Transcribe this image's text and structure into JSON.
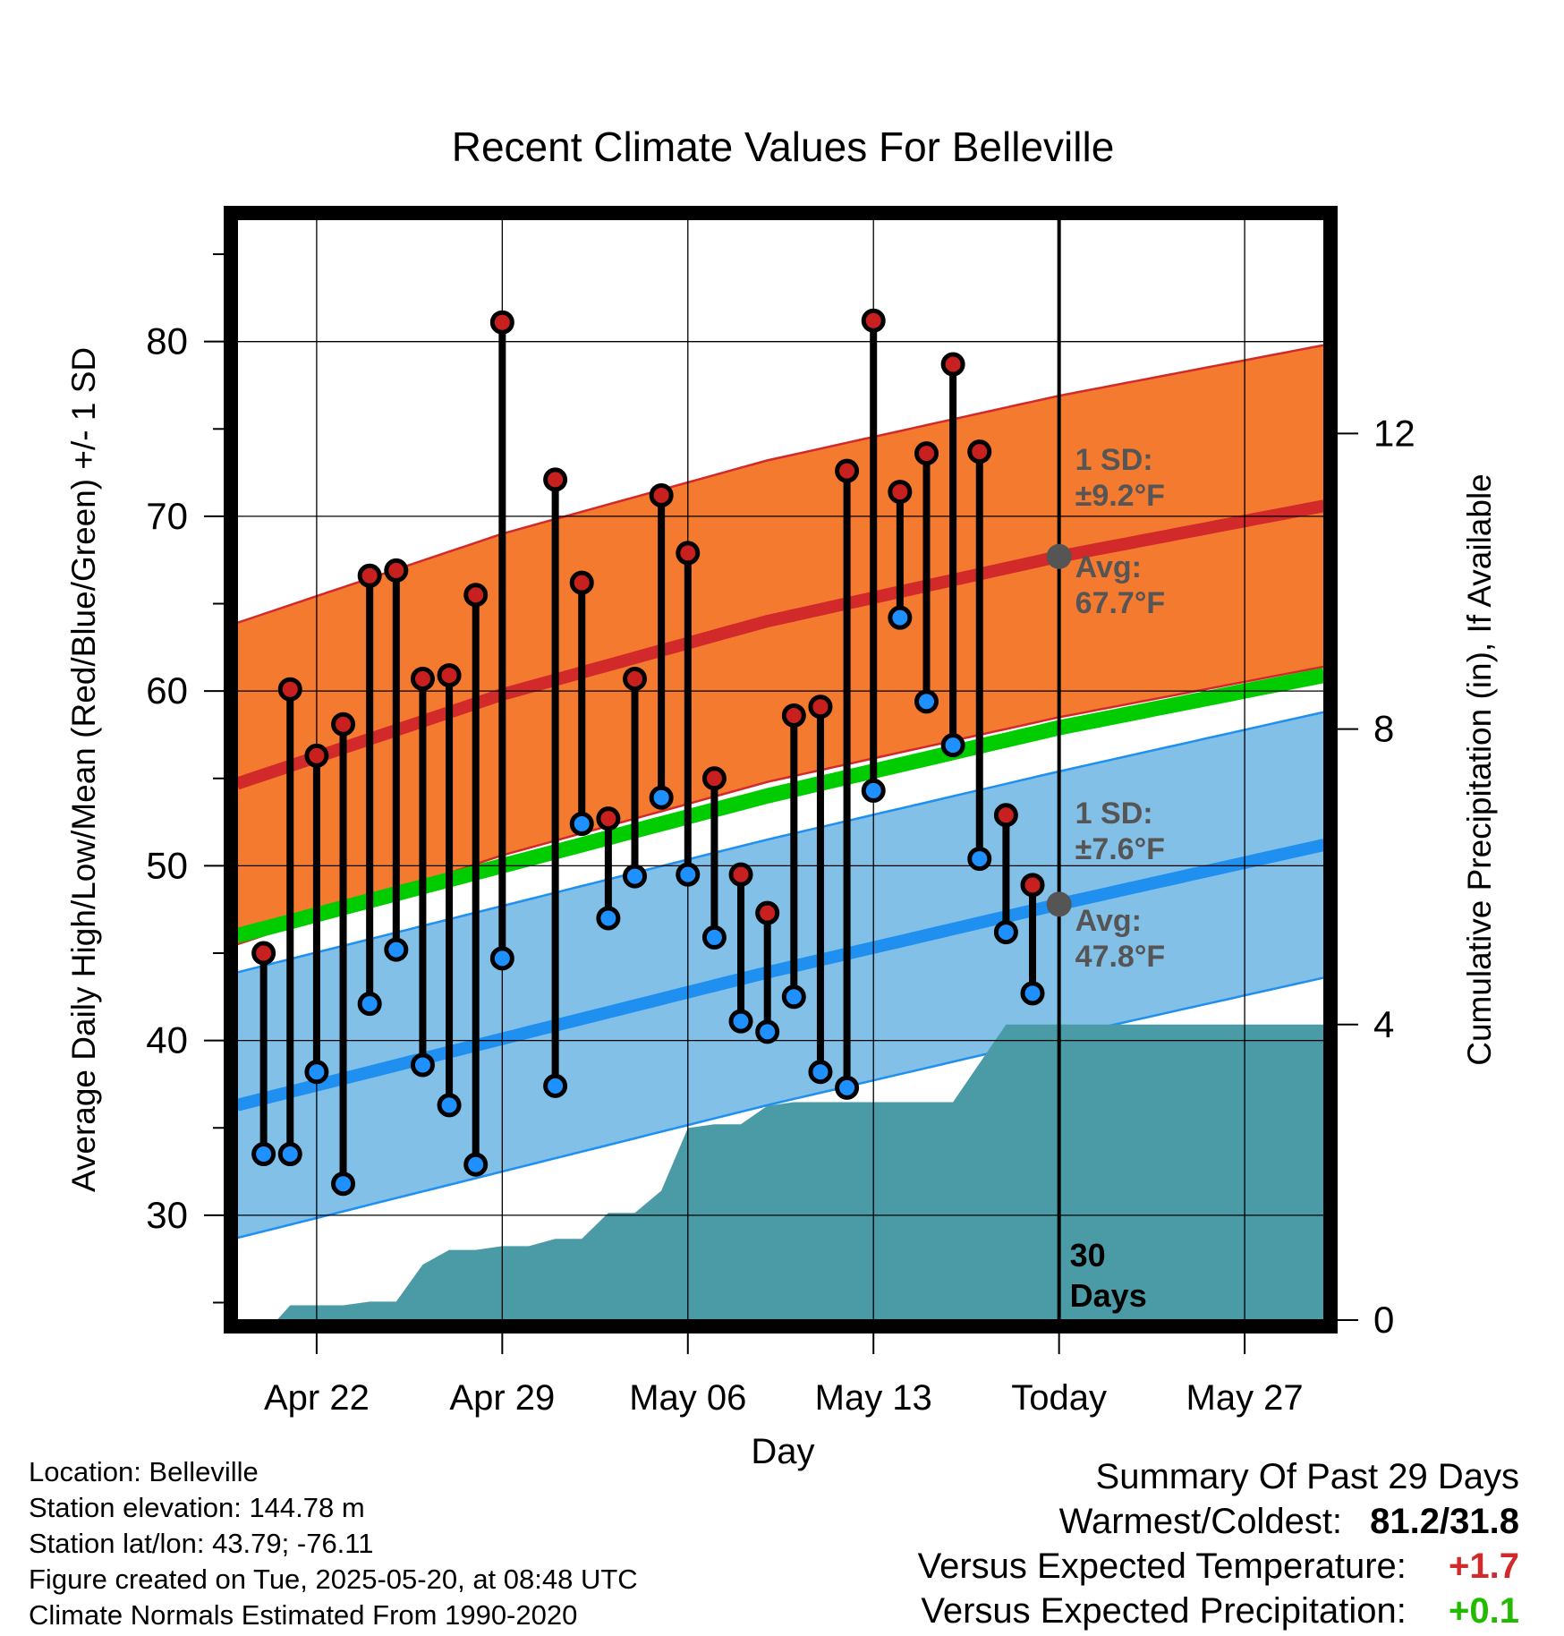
{
  "chart_data": {
    "type": "line",
    "title": "Recent Climate Values For Belleville",
    "xlabel": "Day",
    "ylabel": "Average Daily High/Low/Mean (Red/Blue/Green) +/- 1 SD",
    "y2label": "Cumulative Precipitation (in), If Available",
    "x_start_day": "Apr 19",
    "x_range_days": [
      0,
      41
    ],
    "ylim": [
      24,
      87
    ],
    "y2lim": [
      0,
      14.9
    ],
    "yticks": [
      30,
      40,
      50,
      60,
      70,
      80
    ],
    "y2ticks": [
      0,
      4,
      8,
      12
    ],
    "x_ticks": [
      {
        "day": 3,
        "label": "Apr 22"
      },
      {
        "day": 10,
        "label": "Apr 29"
      },
      {
        "day": 17,
        "label": "May 06"
      },
      {
        "day": 24,
        "label": "May 13"
      },
      {
        "day": 31,
        "label": "Today"
      },
      {
        "day": 38,
        "label": "May 27"
      }
    ],
    "today_day": 31,
    "today_label": "30\nDays",
    "normal_high": {
      "x": [
        0,
        10,
        20,
        31,
        41
      ],
      "avg": [
        54.7,
        59.8,
        64.0,
        67.7,
        70.6
      ],
      "sd": 9.2
    },
    "normal_low": {
      "x": [
        0,
        10,
        20,
        31,
        41
      ],
      "avg": [
        36.3,
        40.1,
        43.9,
        47.8,
        51.2
      ],
      "sd": 7.6
    },
    "normal_mean": {
      "x": [
        0,
        10,
        20,
        31,
        41
      ],
      "values": [
        46.0,
        50.0,
        54.0,
        57.9,
        60.9
      ]
    },
    "annotations": {
      "high_sd": "1 SD:\n±9.2°F",
      "high_avg": "Avg:\n67.7°F",
      "low_sd": "1 SD:\n±7.6°F",
      "low_avg": "Avg:\n47.8°F"
    },
    "daily": [
      {
        "day": 1,
        "high": 45.0,
        "low": 33.5
      },
      {
        "day": 2,
        "high": 60.1,
        "low": 33.5
      },
      {
        "day": 3,
        "high": 56.3,
        "low": 38.2
      },
      {
        "day": 4,
        "high": 58.1,
        "low": 31.8
      },
      {
        "day": 5,
        "high": 66.6,
        "low": 42.1
      },
      {
        "day": 6,
        "high": 66.9,
        "low": 45.2
      },
      {
        "day": 7,
        "high": 60.7,
        "low": 38.6
      },
      {
        "day": 8,
        "high": 60.9,
        "low": 36.3
      },
      {
        "day": 9,
        "high": 65.5,
        "low": 32.9
      },
      {
        "day": 10,
        "high": 81.1,
        "low": 44.7
      },
      {
        "day": 12,
        "high": 72.1,
        "low": 37.4
      },
      {
        "day": 13,
        "high": 66.2,
        "low": 52.4
      },
      {
        "day": 14,
        "high": 52.7,
        "low": 47.0
      },
      {
        "day": 15,
        "high": 60.7,
        "low": 49.4
      },
      {
        "day": 16,
        "high": 71.2,
        "low": 53.9
      },
      {
        "day": 17,
        "high": 67.9,
        "low": 49.5
      },
      {
        "day": 18,
        "high": 55.0,
        "low": 45.9
      },
      {
        "day": 19,
        "high": 49.5,
        "low": 41.1
      },
      {
        "day": 20,
        "high": 47.3,
        "low": 40.5
      },
      {
        "day": 21,
        "high": 58.6,
        "low": 42.5
      },
      {
        "day": 22,
        "high": 59.1,
        "low": 38.2
      },
      {
        "day": 23,
        "high": 72.6,
        "low": 37.3
      },
      {
        "day": 24,
        "high": 81.2,
        "low": 54.3
      },
      {
        "day": 25,
        "high": 71.4,
        "low": 64.2
      },
      {
        "day": 26,
        "high": 73.6,
        "low": 59.4
      },
      {
        "day": 27,
        "high": 78.7,
        "low": 56.9
      },
      {
        "day": 28,
        "high": 73.7,
        "low": 50.4
      },
      {
        "day": 29,
        "high": 52.9,
        "low": 46.2
      },
      {
        "day": 30,
        "high": 48.9,
        "low": 42.7
      }
    ],
    "precip_cumulative": {
      "x": [
        0.5,
        1,
        1.5,
        2,
        4,
        5,
        6,
        7,
        8,
        9,
        10,
        11,
        12,
        13,
        14,
        15,
        16,
        17,
        18,
        19,
        20,
        21,
        22,
        23,
        24,
        25,
        26,
        27,
        29,
        30,
        31,
        41
      ],
      "values": [
        0,
        0,
        0,
        0.2,
        0.2,
        0.25,
        0.25,
        0.75,
        0.95,
        0.95,
        1.0,
        1.0,
        1.1,
        1.1,
        1.45,
        1.45,
        1.75,
        2.6,
        2.65,
        2.65,
        2.9,
        2.95,
        2.95,
        2.95,
        2.95,
        2.95,
        2.95,
        2.95,
        4.0,
        4.0,
        4.0,
        4.0
      ]
    },
    "colors": {
      "high_band": "#f47a30",
      "high_avg_line": "#d22a2a",
      "low_band": "#82c0e8",
      "low_avg_line": "#1f8ff0",
      "mean_line": "#00cc00",
      "precip": "#4a9ba5",
      "high_marker": "#c8201e",
      "low_marker": "#1e90ff",
      "annotation_text": "#555555",
      "today_marker": "#555555"
    },
    "grid": true
  },
  "info": {
    "location": "Location: Belleville",
    "elevation": "Station elevation: 144.78 m",
    "latlon": "Station lat/lon: 43.79; -76.11",
    "created": "Figure created on Tue, 2025-05-20, at 08:48 UTC",
    "normals": "Climate Normals Estimated From 1990-2020"
  },
  "summary": {
    "heading": "Summary Of Past 29 Days",
    "warmest_label": "Warmest/Coldest:",
    "warmest_value": "81.2/31.8",
    "temp_label": "Versus Expected Temperature:",
    "temp_value": "+1.7",
    "temp_color": "#d22a2a",
    "precip_label": "Versus Expected Precipitation:",
    "precip_value": "+0.1",
    "precip_color": "#22bb00"
  }
}
